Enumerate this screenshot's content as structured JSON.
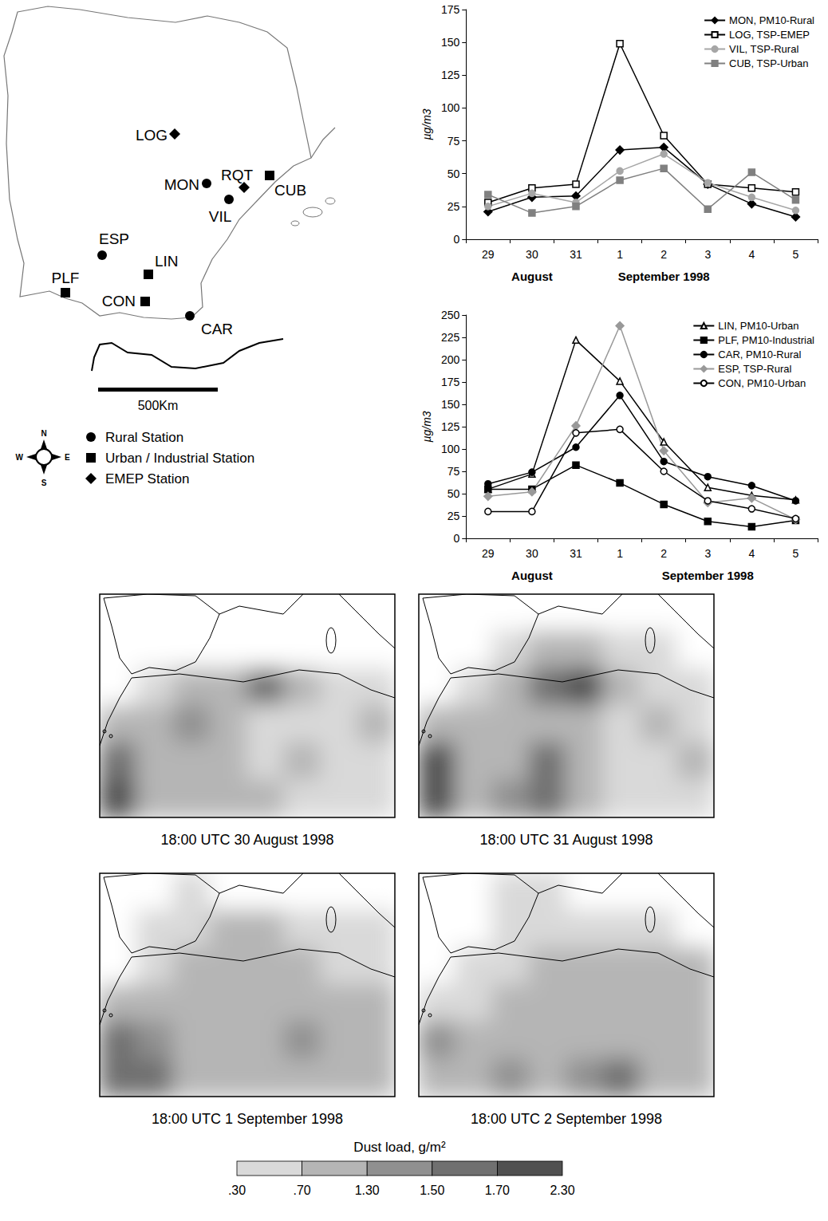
{
  "chart_data": [
    {
      "type": "line",
      "categories": [
        "29",
        "30",
        "31",
        "1",
        "2",
        "3",
        "4",
        "5"
      ],
      "x_group_labels": [
        {
          "text": "August",
          "at": "30"
        },
        {
          "text": "September 1998",
          "at": "2"
        }
      ],
      "y_label": "µg/m3",
      "ylim": [
        0,
        175
      ],
      "yticks": [
        0,
        25,
        50,
        75,
        100,
        125,
        150,
        175
      ],
      "grid": false,
      "legend": "upper right",
      "series": [
        {
          "name": "MON, PM10-Rural",
          "color": "#000000",
          "marker": "diamond",
          "values": [
            21,
            32,
            33,
            68,
            70,
            42,
            27,
            17
          ]
        },
        {
          "name": "LOG, TSP-EMEP",
          "color": "#000000",
          "marker": "square-open",
          "values": [
            28,
            39,
            42,
            149,
            79,
            42,
            39,
            36
          ]
        },
        {
          "name": "VIL, TSP-Rural",
          "color": "#a6a6a6",
          "marker": "circle",
          "values": [
            25,
            35,
            28,
            52,
            65,
            43,
            32,
            22
          ]
        },
        {
          "name": "CUB, TSP-Urban",
          "color": "#808080",
          "marker": "square",
          "values": [
            34,
            20,
            25,
            45,
            54,
            23,
            51,
            30
          ]
        }
      ]
    },
    {
      "type": "line",
      "categories": [
        "29",
        "30",
        "31",
        "1",
        "2",
        "3",
        "4",
        "5"
      ],
      "x_group_labels": [
        {
          "text": "August",
          "at": "30"
        },
        {
          "text": "September 1998",
          "at": "3"
        }
      ],
      "y_label": "µg/m3",
      "ylim": [
        0,
        250
      ],
      "yticks": [
        0,
        25,
        50,
        75,
        100,
        125,
        150,
        175,
        200,
        225,
        250
      ],
      "grid": false,
      "legend": "upper right",
      "series": [
        {
          "name": "LIN, PM10-Urban",
          "color": "#000000",
          "marker": "triangle-open",
          "values": [
            55,
            72,
            222,
            176,
            108,
            57,
            48,
            43
          ]
        },
        {
          "name": "PLF, PM10-Industrial",
          "color": "#000000",
          "marker": "square",
          "values": [
            55,
            55,
            82,
            62,
            38,
            19,
            13,
            20
          ]
        },
        {
          "name": "CAR, PM10-Rural",
          "color": "#000000",
          "marker": "circle",
          "values": [
            61,
            74,
            102,
            160,
            86,
            69,
            59,
            42
          ]
        },
        {
          "name": "ESP, TSP-Rural",
          "color": "#999999",
          "marker": "diamond",
          "values": [
            47,
            52,
            126,
            238,
            98,
            40,
            45,
            21
          ]
        },
        {
          "name": "CON, PM10-Urban",
          "color": "#000000",
          "marker": "circle-open",
          "values": [
            30,
            30,
            118,
            122,
            75,
            42,
            33,
            22
          ]
        }
      ]
    }
  ],
  "map": {
    "stations": [
      {
        "code": "LOG",
        "kind": "EMEP"
      },
      {
        "code": "MON",
        "kind": "rural"
      },
      {
        "code": "RQT",
        "kind": "EMEP"
      },
      {
        "code": "CUB",
        "kind": "urban"
      },
      {
        "code": "VIL",
        "kind": "rural"
      },
      {
        "code": "ESP",
        "kind": "rural"
      },
      {
        "code": "LIN",
        "kind": "urban"
      },
      {
        "code": "PLF",
        "kind": "urban"
      },
      {
        "code": "CON",
        "kind": "urban"
      },
      {
        "code": "CAR",
        "kind": "rural"
      }
    ],
    "scale_bar": "500Km",
    "compass": {
      "north": "N",
      "south": "S",
      "west": "W",
      "east": "E"
    },
    "legend": [
      {
        "kind": "rural",
        "label": "Rural Station"
      },
      {
        "kind": "urban",
        "label": "Urban / Industrial Station"
      },
      {
        "kind": "EMEP",
        "label": "EMEP Station"
      }
    ]
  },
  "dust_maps": {
    "panels": [
      {
        "caption": "18:00 UTC 30 August 1998",
        "dust_load": [
          [
            0,
            0,
            0,
            0,
            0,
            0,
            0,
            0
          ],
          [
            0,
            0,
            0,
            0.2,
            0.2,
            0,
            0,
            0
          ],
          [
            0,
            0.4,
            0.8,
            1.0,
            1.6,
            1.0,
            0.4,
            0.4
          ],
          [
            0.8,
            1.0,
            1.4,
            1.0,
            0.6,
            0.4,
            0.5,
            0.8
          ],
          [
            1.6,
            0.8,
            1.0,
            0.8,
            0.6,
            0.8,
            0.5,
            0.5
          ],
          [
            1.8,
            1.0,
            1.0,
            1.0,
            0.8,
            0.5,
            0.5,
            0.6
          ]
        ]
      },
      {
        "caption": "18:00 UTC 31 August 1998",
        "dust_load": [
          [
            0,
            0,
            0,
            0,
            0,
            0,
            0,
            0
          ],
          [
            0,
            0,
            0.4,
            0.8,
            1.0,
            0.5,
            0.3,
            0
          ],
          [
            0,
            0.5,
            1.0,
            1.6,
            1.8,
            1.0,
            0.5,
            0.4
          ],
          [
            1.0,
            1.0,
            1.2,
            1.0,
            0.8,
            0.6,
            0.8,
            0.5
          ],
          [
            1.8,
            1.0,
            1.0,
            1.6,
            1.2,
            0.6,
            0.6,
            0.8
          ],
          [
            1.8,
            1.0,
            1.4,
            1.6,
            1.0,
            0.6,
            0.5,
            0.5
          ]
        ]
      },
      {
        "caption": "18:00 UTC 1 September 1998",
        "dust_load": [
          [
            0,
            0,
            0.3,
            0,
            0,
            0,
            0,
            0
          ],
          [
            0,
            0.4,
            0.5,
            0.8,
            0.7,
            0.5,
            0.4,
            0.3
          ],
          [
            0,
            0.5,
            0.8,
            1.0,
            0.8,
            0.8,
            0.6,
            0.5
          ],
          [
            0.8,
            0.8,
            1.0,
            0.8,
            0.8,
            0.8,
            1.0,
            0.7
          ],
          [
            1.6,
            1.4,
            0.8,
            1.0,
            1.0,
            1.4,
            1.0,
            0.8
          ],
          [
            1.6,
            1.6,
            1.0,
            0.8,
            1.0,
            1.0,
            0.8,
            0.8
          ]
        ]
      },
      {
        "caption": "18:00 UTC 2 September 1998",
        "dust_load": [
          [
            0,
            0,
            0.4,
            0.4,
            0,
            0,
            0,
            0
          ],
          [
            0,
            0,
            0.4,
            0.5,
            0.4,
            0.3,
            0.3,
            0
          ],
          [
            0,
            0.3,
            0.5,
            0.8,
            0.8,
            0.8,
            0.8,
            0.7
          ],
          [
            0.4,
            0.5,
            0.8,
            0.8,
            1.0,
            1.0,
            0.8,
            0.8
          ],
          [
            1.4,
            1.0,
            0.8,
            0.8,
            0.9,
            1.0,
            0.9,
            0.8
          ],
          [
            1.0,
            0.8,
            1.4,
            1.0,
            1.4,
            1.6,
            1.0,
            0.8
          ]
        ]
      }
    ],
    "colorbar": {
      "title": "Dust load, g/m²",
      "ticks": [
        {
          "value": 0.3,
          "label": ".30"
        },
        {
          "value": 0.7,
          "label": ".70"
        },
        {
          "value": 1.3,
          "label": "1.30"
        },
        {
          "value": 1.5,
          "label": "1.50"
        },
        {
          "value": 1.7,
          "label": "1.70"
        },
        {
          "value": 2.3,
          "label": "2.30"
        }
      ],
      "colors": [
        "#d9d9d9",
        "#b5b5b5",
        "#909090",
        "#707070",
        "#505050"
      ]
    }
  }
}
